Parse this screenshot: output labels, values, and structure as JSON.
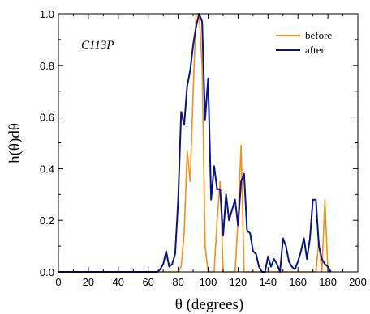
{
  "chart_data": {
    "type": "line",
    "title": "",
    "annotation": "C113P",
    "xlabel": "θ (degrees)",
    "ylabel": "h(θ)dθ",
    "xlim": [
      0,
      200
    ],
    "ylim": [
      0,
      1.0
    ],
    "x_ticks": [
      0,
      20,
      40,
      60,
      80,
      100,
      120,
      140,
      160,
      180,
      200
    ],
    "y_ticks": [
      0.0,
      0.2,
      0.4,
      0.6,
      0.8,
      1.0
    ],
    "x_tick_labels": [
      "0",
      "20",
      "40",
      "60",
      "80",
      "100",
      "120",
      "140",
      "160",
      "180",
      "200"
    ],
    "y_tick_labels": [
      "0.0",
      "0.2",
      "0.4",
      "0.6",
      "0.8",
      "1.0"
    ],
    "grid": false,
    "legend_position": "top-right",
    "series": [
      {
        "name": "before",
        "color": "#f0901e",
        "x": [
          0,
          80,
          82,
          84,
          86,
          88,
          90,
          92,
          94,
          96,
          98,
          100,
          102,
          104,
          106,
          108,
          110,
          112,
          114,
          116,
          118,
          120,
          122,
          124,
          126,
          128,
          130,
          132,
          170,
          172,
          174,
          176,
          178,
          180,
          182
        ],
        "y": [
          0,
          0,
          0.02,
          0.15,
          0.47,
          0.35,
          0.7,
          1.0,
          1.0,
          0.8,
          0.1,
          0.0,
          0.0,
          0.0,
          0.2,
          0.35,
          0.0,
          0.0,
          0.0,
          0.0,
          0.0,
          0.2,
          0.49,
          0.0,
          0.0,
          0.0,
          0.0,
          0.0,
          0.0,
          0.0,
          0.12,
          0.0,
          0.28,
          0.0,
          0.0
        ]
      },
      {
        "name": "after",
        "color": "#0b1580",
        "x": [
          0,
          66,
          68,
          70,
          72,
          74,
          76,
          78,
          80,
          82,
          84,
          86,
          88,
          90,
          92,
          94,
          96,
          98,
          100,
          102,
          104,
          106,
          108,
          110,
          112,
          114,
          116,
          118,
          120,
          122,
          124,
          126,
          128,
          130,
          132,
          134,
          136,
          138,
          140,
          142,
          144,
          146,
          148,
          150,
          152,
          154,
          156,
          158,
          160,
          162,
          164,
          166,
          168,
          170,
          172,
          174,
          176,
          178,
          180,
          182
        ],
        "y": [
          0,
          0,
          0.01,
          0.03,
          0.08,
          0.02,
          0.03,
          0.07,
          0.28,
          0.62,
          0.57,
          0.72,
          0.78,
          0.88,
          0.95,
          1.0,
          0.97,
          0.59,
          0.75,
          0.28,
          0.41,
          0.32,
          0.32,
          0.14,
          0.3,
          0.2,
          0.24,
          0.28,
          0.18,
          0.35,
          0.38,
          0.16,
          0.15,
          0.08,
          0.07,
          0.02,
          0.0,
          0.0,
          0.06,
          0.02,
          0.05,
          0.03,
          0.0,
          0.13,
          0.1,
          0.04,
          0.02,
          0.01,
          0.04,
          0.08,
          0.13,
          0.05,
          0.13,
          0.28,
          0.28,
          0.1,
          0.05,
          0.03,
          0.02,
          0.0
        ]
      }
    ]
  }
}
